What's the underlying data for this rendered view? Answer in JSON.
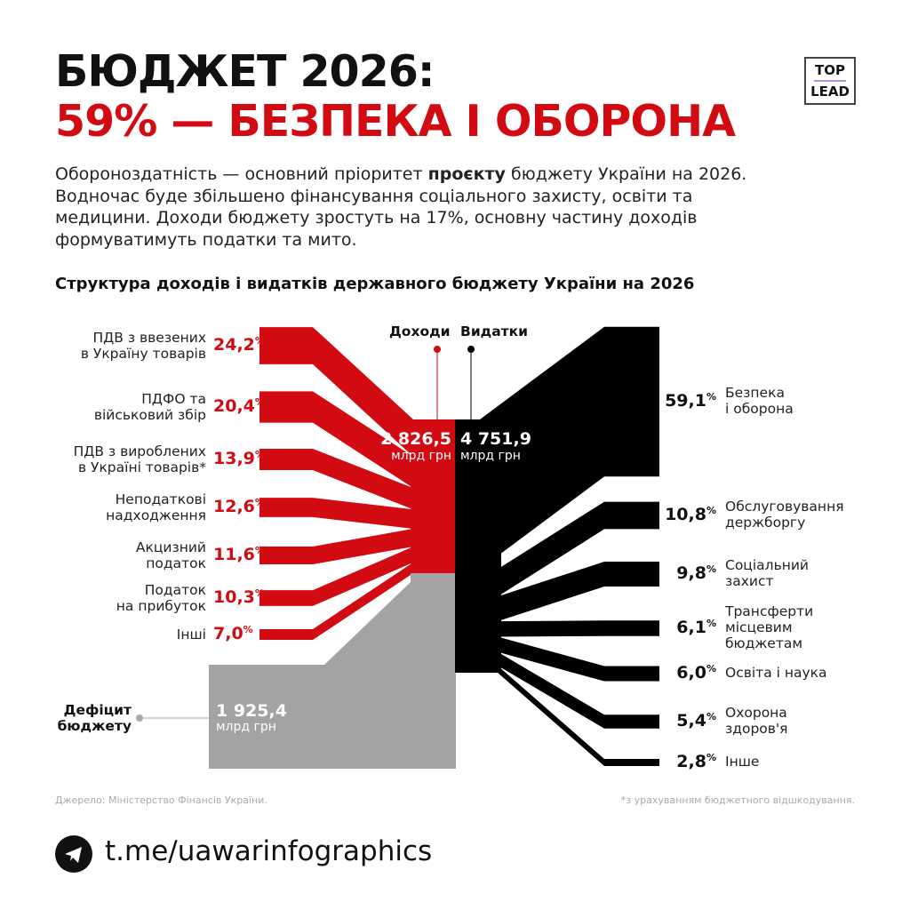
{
  "header": {
    "title_line1": "БЮДЖЕТ 2026:",
    "title_line2": "59% — БЕЗПЕКА І ОБОРОНА",
    "logo": "TOP LEAD",
    "logo_top": "TOP",
    "logo_bottom": "LEAD"
  },
  "intro": {
    "part1": "Обороноздатність — основний пріоритет ",
    "bold": "проєкту",
    "part2": " бюджету України на 2026. Водночас буде збільшено фінансування соціального захисту, освіти та медицини. Доходи бюджету зростуть на 17%, основну частину доходів формуватимуть податки та мито."
  },
  "chart_data": {
    "type": "sankey",
    "title": "Структура доходів і видатків державного бюджету України на 2026",
    "income_header": "Доходи",
    "expense_header": "Видатки",
    "income_total": "2 826,5",
    "expense_total": "4 751,9",
    "deficit_total": "1 925,4",
    "unit": "млрд грн",
    "deficit_label_1": "Дефіцит",
    "deficit_label_2": "бюджету",
    "colors": {
      "income": "#d20a11",
      "expense": "#000000",
      "deficit": "#a3a3a3"
    },
    "income": [
      {
        "l1": "ПДВ з ввезених",
        "l2": "в Україну товарів",
        "value": 24.2,
        "pct": "24,2"
      },
      {
        "l1": "ПДФО та",
        "l2": "військовий збір",
        "value": 20.4,
        "pct": "20,4"
      },
      {
        "l1": "ПДВ з вироблених",
        "l2": "в Україні товарів*",
        "value": 13.9,
        "pct": "13,9"
      },
      {
        "l1": "Неподаткові",
        "l2": "надходження",
        "value": 12.6,
        "pct": "12,6"
      },
      {
        "l1": "Акцизний",
        "l2": "податок",
        "value": 11.6,
        "pct": "11,6"
      },
      {
        "l1": "Податок",
        "l2": "на прибуток",
        "value": 10.3,
        "pct": "10,3"
      },
      {
        "l1": "Інші",
        "l2": "",
        "value": 7.0,
        "pct": "7,0"
      }
    ],
    "expense": [
      {
        "l1": "Безпека",
        "l2": "і оборона",
        "l3": "",
        "value": 59.1,
        "pct": "59,1"
      },
      {
        "l1": "Обслуговування",
        "l2": "держборгу",
        "l3": "",
        "value": 10.8,
        "pct": "10,8"
      },
      {
        "l1": "Соціальний",
        "l2": "захист",
        "l3": "",
        "value": 9.8,
        "pct": "9,8"
      },
      {
        "l1": "Трансферти",
        "l2": "місцевим",
        "l3": "бюджетам",
        "value": 6.1,
        "pct": "6,1"
      },
      {
        "l1": "Освіта і наука",
        "l2": "",
        "l3": "",
        "value": 6.0,
        "pct": "6,0"
      },
      {
        "l1": "Охорона",
        "l2": "здоров'я",
        "l3": "",
        "value": 5.4,
        "pct": "5,4"
      },
      {
        "l1": "Інше",
        "l2": "",
        "l3": "",
        "value": 2.8,
        "pct": "2,8"
      }
    ],
    "pct_sign": "%"
  },
  "footer": {
    "source": "Джерело: Міністерство Фінансів України.",
    "note": "*з урахуванням бюджетного відшкодування.",
    "telegram": "t.me/uawarinfographics"
  }
}
